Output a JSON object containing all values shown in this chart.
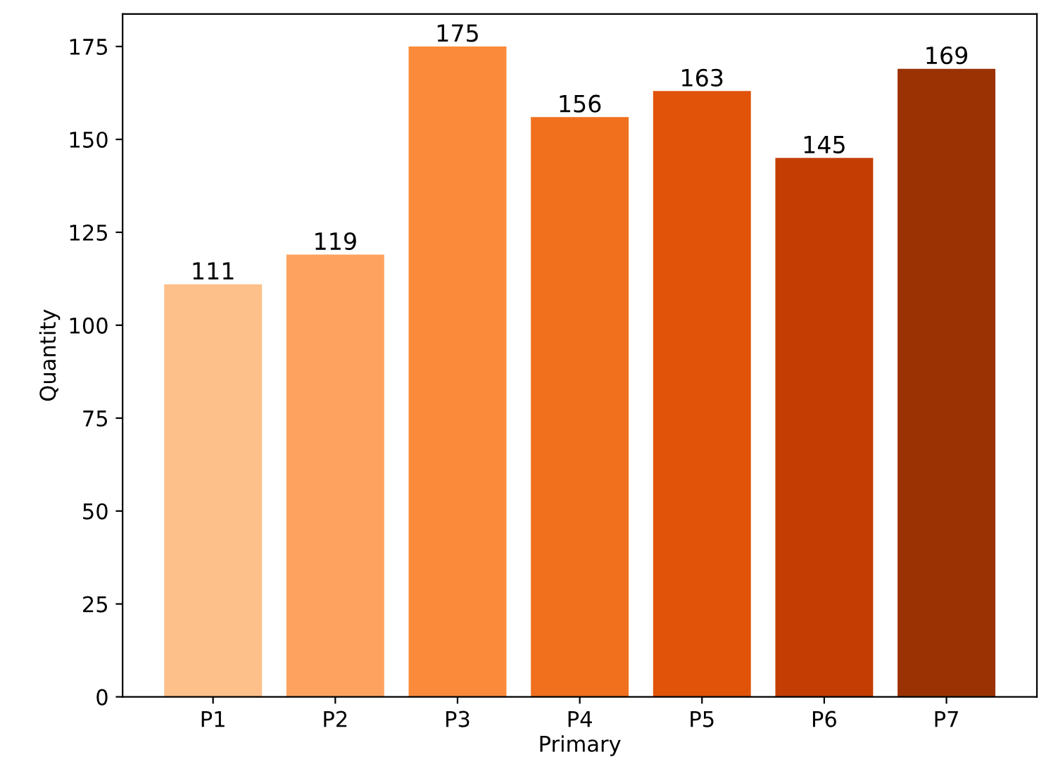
{
  "chart_data": {
    "type": "bar",
    "xlabel": "Primary",
    "ylabel": "Quantity",
    "categories": [
      "P1",
      "P2",
      "P3",
      "P4",
      "P5",
      "P6",
      "P7"
    ],
    "values": [
      111,
      119,
      175,
      156,
      163,
      145,
      169
    ],
    "colors": [
      "#fdc08a",
      "#fda35f",
      "#fb8a3a",
      "#f0701e",
      "#e05308",
      "#c43e03",
      "#9b3203"
    ],
    "ylim": [
      0,
      183.75
    ],
    "yticks": [
      0,
      25,
      50,
      75,
      100,
      125,
      150,
      175
    ],
    "data_labels": true,
    "grid": false
  }
}
